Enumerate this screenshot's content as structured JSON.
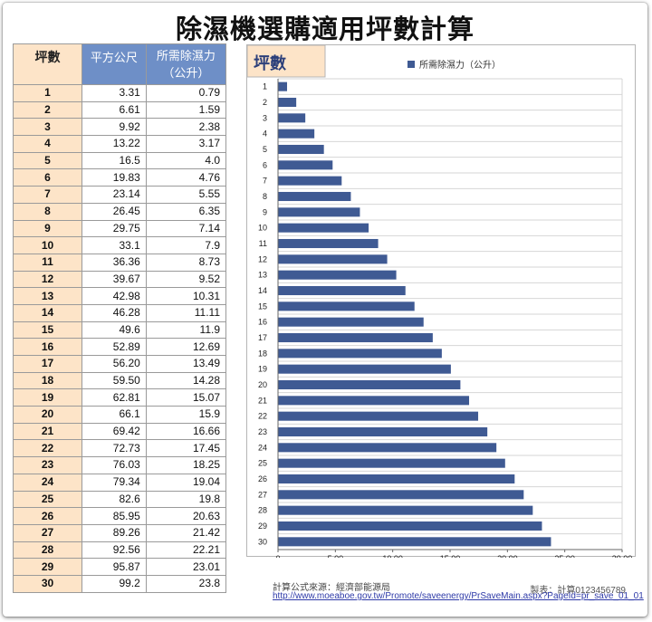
{
  "title": "除濕機選購適用坪數計算",
  "table": {
    "headers": {
      "ping": "坪數",
      "m2": "平方公尺",
      "dehumid_line1": "所需除濕力",
      "dehumid_line2": "（公升）"
    },
    "rows": [
      [
        "1",
        "3.31",
        "0.79"
      ],
      [
        "2",
        "6.61",
        "1.59"
      ],
      [
        "3",
        "9.92",
        "2.38"
      ],
      [
        "4",
        "13.22",
        "3.17"
      ],
      [
        "5",
        "16.5",
        "4.0"
      ],
      [
        "6",
        "19.83",
        "4.76"
      ],
      [
        "7",
        "23.14",
        "5.55"
      ],
      [
        "8",
        "26.45",
        "6.35"
      ],
      [
        "9",
        "29.75",
        "7.14"
      ],
      [
        "10",
        "33.1",
        "7.9"
      ],
      [
        "11",
        "36.36",
        "8.73"
      ],
      [
        "12",
        "39.67",
        "9.52"
      ],
      [
        "13",
        "42.98",
        "10.31"
      ],
      [
        "14",
        "46.28",
        "11.11"
      ],
      [
        "15",
        "49.6",
        "11.9"
      ],
      [
        "16",
        "52.89",
        "12.69"
      ],
      [
        "17",
        "56.20",
        "13.49"
      ],
      [
        "18",
        "59.50",
        "14.28"
      ],
      [
        "19",
        "62.81",
        "15.07"
      ],
      [
        "20",
        "66.1",
        "15.9"
      ],
      [
        "21",
        "69.42",
        "16.66"
      ],
      [
        "22",
        "72.73",
        "17.45"
      ],
      [
        "23",
        "76.03",
        "18.25"
      ],
      [
        "24",
        "79.34",
        "19.04"
      ],
      [
        "25",
        "82.6",
        "19.8"
      ],
      [
        "26",
        "85.95",
        "20.63"
      ],
      [
        "27",
        "89.26",
        "21.42"
      ],
      [
        "28",
        "92.56",
        "22.21"
      ],
      [
        "29",
        "95.87",
        "23.01"
      ],
      [
        "30",
        "99.2",
        "23.8"
      ]
    ]
  },
  "chart_data": {
    "type": "bar",
    "orientation": "horizontal",
    "title": "坪數",
    "xlabel": "",
    "ylabel": "",
    "categories": [
      "1",
      "2",
      "3",
      "4",
      "5",
      "6",
      "7",
      "8",
      "9",
      "10",
      "11",
      "12",
      "13",
      "14",
      "15",
      "16",
      "17",
      "18",
      "19",
      "20",
      "21",
      "22",
      "23",
      "24",
      "25",
      "26",
      "27",
      "28",
      "29",
      "30"
    ],
    "series": [
      {
        "name": "所需除濕力（公升）",
        "values": [
          0.79,
          1.59,
          2.38,
          3.17,
          4.0,
          4.76,
          5.55,
          6.35,
          7.14,
          7.9,
          8.73,
          9.52,
          10.31,
          11.11,
          11.9,
          12.69,
          13.49,
          14.28,
          15.07,
          15.9,
          16.66,
          17.45,
          18.25,
          19.04,
          19.8,
          20.63,
          21.42,
          22.21,
          23.01,
          23.8
        ]
      }
    ],
    "xlim": [
      0,
      30
    ],
    "x_ticks": [
      "0",
      "5.00",
      "10.00",
      "15.00",
      "20.00",
      "25.00",
      "30.00"
    ],
    "grid": true,
    "legend_position": "top",
    "colors": {
      "bar": "#3f5a93",
      "title_box": "#fde4c8",
      "grid": "#d6d6d6"
    }
  },
  "credits": {
    "source": "計算公式來源：經濟部能源局",
    "maker": "製表：計算0123456789",
    "url": "http://www.moeaboe.gov.tw/Promote/saveenergy/PrSaveMain.aspx?PageId=pr_save_01_01"
  }
}
